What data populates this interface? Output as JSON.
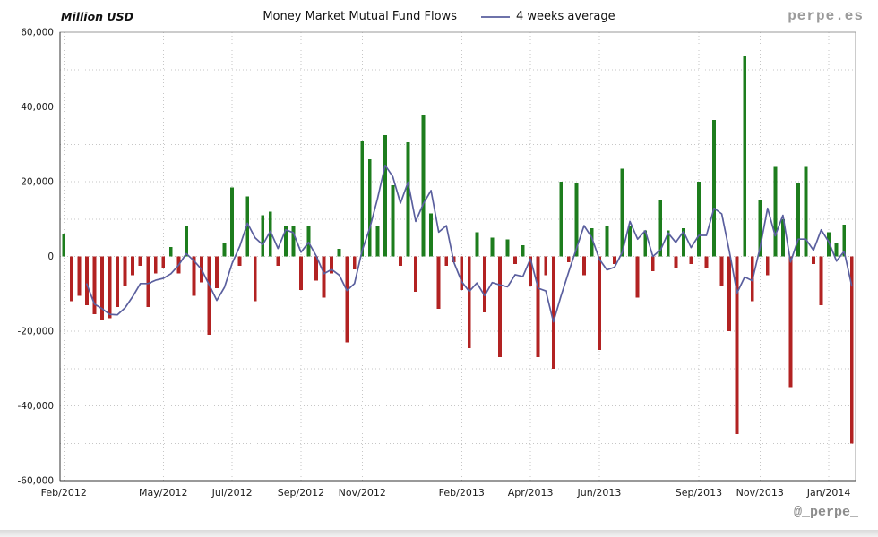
{
  "header": {
    "y_axis_title": "Million USD",
    "brand": "perpe.es"
  },
  "footer": {
    "handle": "@_perpe_"
  },
  "chart_data": {
    "type": "bar",
    "title": "Money Market Mutual Fund Flows",
    "unit": "Million USD",
    "ylim": [
      -60000,
      60000
    ],
    "y_gridline_step": 10000,
    "y_tick_values": [
      60000,
      40000,
      20000,
      0,
      -20000,
      -40000,
      -60000
    ],
    "x_ticks": [
      {
        "label": "Feb/2012",
        "week_index": 0
      },
      {
        "label": "May/2012",
        "week_index": 13
      },
      {
        "label": "Jul/2012",
        "week_index": 22
      },
      {
        "label": "Sep/2012",
        "week_index": 31
      },
      {
        "label": "Nov/2012",
        "week_index": 39
      },
      {
        "label": "Feb/2013",
        "week_index": 52
      },
      {
        "label": "Apr/2013",
        "week_index": 61
      },
      {
        "label": "Jun/2013",
        "week_index": 70
      },
      {
        "label": "Sep/2013",
        "week_index": 83
      },
      {
        "label": "Nov/2013",
        "week_index": 91
      },
      {
        "label": "Jan/2014",
        "week_index": 100
      }
    ],
    "line": {
      "name": "4 weeks average",
      "window": 4,
      "color": "#5a5f9e"
    },
    "colors": {
      "positive_bar": "#1d7d1d",
      "negative_bar": "#b22222",
      "grid": "#c6c6c6",
      "axis": "#333333",
      "frame": "#999999",
      "text": "#1a1a1a"
    },
    "weekly_flows": [
      {
        "date": "2012-02-03",
        "value": 6000
      },
      {
        "date": "2012-02-10",
        "value": -12000
      },
      {
        "date": "2012-02-17",
        "value": -10500
      },
      {
        "date": "2012-02-24",
        "value": -13000
      },
      {
        "date": "2012-03-02",
        "value": -15500
      },
      {
        "date": "2012-03-09",
        "value": -17000
      },
      {
        "date": "2012-03-16",
        "value": -16500
      },
      {
        "date": "2012-03-23",
        "value": -13500
      },
      {
        "date": "2012-03-30",
        "value": -8000
      },
      {
        "date": "2012-04-06",
        "value": -5000
      },
      {
        "date": "2012-04-13",
        "value": -2500
      },
      {
        "date": "2012-04-20",
        "value": -13500
      },
      {
        "date": "2012-04-27",
        "value": -4500
      },
      {
        "date": "2012-05-04",
        "value": -3000
      },
      {
        "date": "2012-05-11",
        "value": 2500
      },
      {
        "date": "2012-05-18",
        "value": -4500
      },
      {
        "date": "2012-05-25",
        "value": 8000
      },
      {
        "date": "2012-06-01",
        "value": -10500
      },
      {
        "date": "2012-06-08",
        "value": -7000
      },
      {
        "date": "2012-06-15",
        "value": -21000
      },
      {
        "date": "2012-06-22",
        "value": -8500
      },
      {
        "date": "2012-06-29",
        "value": 3500
      },
      {
        "date": "2012-07-06",
        "value": 18500
      },
      {
        "date": "2012-07-13",
        "value": -2500
      },
      {
        "date": "2012-07-20",
        "value": 16000
      },
      {
        "date": "2012-07-27",
        "value": -12000
      },
      {
        "date": "2012-08-03",
        "value": 11000
      },
      {
        "date": "2012-08-10",
        "value": 12000
      },
      {
        "date": "2012-08-17",
        "value": -2500
      },
      {
        "date": "2012-08-24",
        "value": 8000
      },
      {
        "date": "2012-08-31",
        "value": 8000
      },
      {
        "date": "2012-09-07",
        "value": -9000
      },
      {
        "date": "2012-09-14",
        "value": 8000
      },
      {
        "date": "2012-09-21",
        "value": -6500
      },
      {
        "date": "2012-09-28",
        "value": -11000
      },
      {
        "date": "2012-10-05",
        "value": -4500
      },
      {
        "date": "2012-10-12",
        "value": 2000
      },
      {
        "date": "2012-10-19",
        "value": -23000
      },
      {
        "date": "2012-10-26",
        "value": -3500
      },
      {
        "date": "2012-11-02",
        "value": 31000
      },
      {
        "date": "2012-11-09",
        "value": 26000
      },
      {
        "date": "2012-11-16",
        "value": 8000
      },
      {
        "date": "2012-11-23",
        "value": 32500
      },
      {
        "date": "2012-11-30",
        "value": 19000
      },
      {
        "date": "2012-12-07",
        "value": -2500
      },
      {
        "date": "2012-12-14",
        "value": 30500
      },
      {
        "date": "2012-12-21",
        "value": -9500
      },
      {
        "date": "2012-12-28",
        "value": 38000
      },
      {
        "date": "2013-01-04",
        "value": 11500
      },
      {
        "date": "2013-01-11",
        "value": -14000
      },
      {
        "date": "2013-01-18",
        "value": -2500
      },
      {
        "date": "2013-01-25",
        "value": -1500
      },
      {
        "date": "2013-02-01",
        "value": -9000
      },
      {
        "date": "2013-02-08",
        "value": -24500
      },
      {
        "date": "2013-02-15",
        "value": 6500
      },
      {
        "date": "2013-02-22",
        "value": -15000
      },
      {
        "date": "2013-03-01",
        "value": 5000
      },
      {
        "date": "2013-03-08",
        "value": -27000
      },
      {
        "date": "2013-03-15",
        "value": 4500
      },
      {
        "date": "2013-03-22",
        "value": -2000
      },
      {
        "date": "2013-03-29",
        "value": 3000
      },
      {
        "date": "2013-04-05",
        "value": -8000
      },
      {
        "date": "2013-04-12",
        "value": -27000
      },
      {
        "date": "2013-04-19",
        "value": -5000
      },
      {
        "date": "2013-04-26",
        "value": -30000
      },
      {
        "date": "2013-05-03",
        "value": 20000
      },
      {
        "date": "2013-05-10",
        "value": -1500
      },
      {
        "date": "2013-05-17",
        "value": 19500
      },
      {
        "date": "2013-05-24",
        "value": -5000
      },
      {
        "date": "2013-05-31",
        "value": 7500
      },
      {
        "date": "2013-06-07",
        "value": -25000
      },
      {
        "date": "2013-06-14",
        "value": 8000
      },
      {
        "date": "2013-06-21",
        "value": -2000
      },
      {
        "date": "2013-06-28",
        "value": 23500
      },
      {
        "date": "2013-07-05",
        "value": 8000
      },
      {
        "date": "2013-07-12",
        "value": -11000
      },
      {
        "date": "2013-07-19",
        "value": 7000
      },
      {
        "date": "2013-07-26",
        "value": -4000
      },
      {
        "date": "2013-08-02",
        "value": 15000
      },
      {
        "date": "2013-08-09",
        "value": 7000
      },
      {
        "date": "2013-08-16",
        "value": -3000
      },
      {
        "date": "2013-08-23",
        "value": 7500
      },
      {
        "date": "2013-08-30",
        "value": -2000
      },
      {
        "date": "2013-09-06",
        "value": 20000
      },
      {
        "date": "2013-09-13",
        "value": -3000
      },
      {
        "date": "2013-09-20",
        "value": 36500
      },
      {
        "date": "2013-09-27",
        "value": -8000
      },
      {
        "date": "2013-10-04",
        "value": -20000
      },
      {
        "date": "2013-10-11",
        "value": -47500
      },
      {
        "date": "2013-10-18",
        "value": 53500
      },
      {
        "date": "2013-10-25",
        "value": -12000
      },
      {
        "date": "2013-11-01",
        "value": 15000
      },
      {
        "date": "2013-11-08",
        "value": -5000
      },
      {
        "date": "2013-11-15",
        "value": 24000
      },
      {
        "date": "2013-11-22",
        "value": 10000
      },
      {
        "date": "2013-11-29",
        "value": -35000
      },
      {
        "date": "2013-12-06",
        "value": 19500
      },
      {
        "date": "2013-12-13",
        "value": 24000
      },
      {
        "date": "2013-12-20",
        "value": -2000
      },
      {
        "date": "2013-12-27",
        "value": -13000
      },
      {
        "date": "2014-01-03",
        "value": 6500
      },
      {
        "date": "2014-01-10",
        "value": 3500
      },
      {
        "date": "2014-01-17",
        "value": 8500
      },
      {
        "date": "2014-01-24",
        "value": -50000
      }
    ]
  }
}
